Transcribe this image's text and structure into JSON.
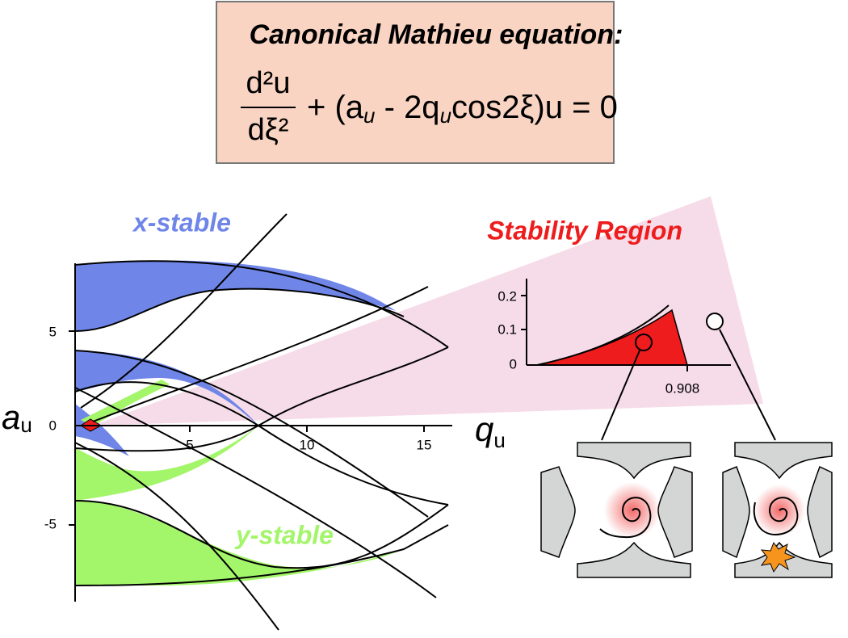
{
  "header": {
    "title": "Canonical Mathieu equation:",
    "equation": {
      "numerator": "d²u",
      "denominator": "dξ²",
      "parts": [
        "+  (a",
        "u",
        " - 2q",
        "u",
        "cos2ξ)u = 0"
      ]
    }
  },
  "plot": {
    "x_label": "q",
    "x_label_sub": "u",
    "y_label": "a",
    "y_label_sub": "u",
    "x_ticks": [
      "5",
      "10",
      "15"
    ],
    "y_ticks": [
      "5",
      "0",
      "-5"
    ],
    "regions": [
      "x-stable",
      "y-stable"
    ]
  },
  "inset": {
    "title": "Stability Region",
    "y_ticks": [
      "0.2",
      "0.1",
      "0"
    ],
    "x_tick": "0.908"
  }
}
